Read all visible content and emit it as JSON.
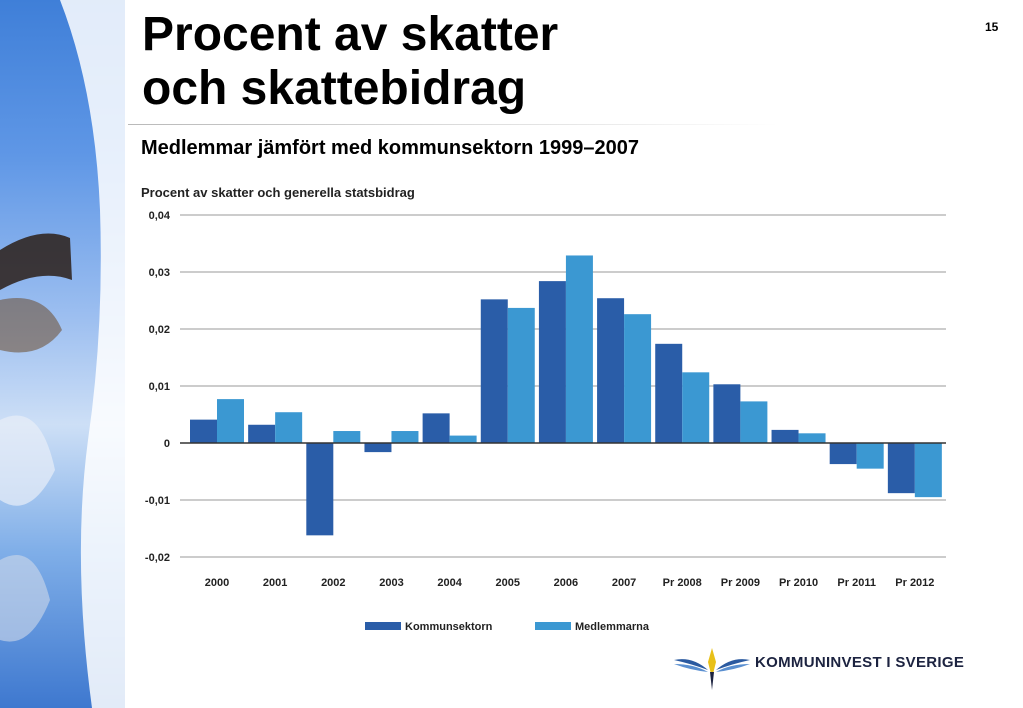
{
  "slide": {
    "title_line1": "Procent av skatter",
    "title_line2": "och skattebidrag",
    "page_number": "15",
    "subtitle": "Medlemmar jämfört med kommunsektorn 1999–2007",
    "logo_text": "KOMMUNINVEST I SVERIGE"
  },
  "chart_data": {
    "type": "bar",
    "title": "Procent av skatter och generella statsbidrag",
    "xlabel": "",
    "ylabel": "",
    "ylim": [
      -0.02,
      0.04
    ],
    "yticks": [
      "0,04",
      "0,03",
      "0,02",
      "0,01",
      "0",
      "-0,01",
      "-0,02"
    ],
    "ytick_values": [
      0.04,
      0.03,
      0.02,
      0.01,
      0,
      -0.01,
      -0.02
    ],
    "grid": true,
    "legend_position": "bottom",
    "categories": [
      "2000",
      "2001",
      "2002",
      "2003",
      "2004",
      "2005",
      "2006",
      "2007",
      "Pr 2008",
      "Pr 2009",
      "Pr 2010",
      "Pr 2011",
      "Pr 2012"
    ],
    "series": [
      {
        "name": "Kommunsektorn",
        "color": "#2a5da8",
        "values": [
          0.0041,
          0.0032,
          -0.0162,
          -0.0016,
          0.0052,
          0.0252,
          0.0284,
          0.0254,
          0.0174,
          0.0103,
          0.0023,
          -0.0037,
          -0.0088
        ]
      },
      {
        "name": "Medlemmarna",
        "color": "#3b98d2",
        "values": [
          0.0077,
          0.0054,
          0.0021,
          0.0021,
          0.0013,
          0.0237,
          0.0329,
          0.0226,
          0.0124,
          0.0073,
          0.0017,
          -0.0045,
          -0.0095
        ]
      }
    ]
  }
}
